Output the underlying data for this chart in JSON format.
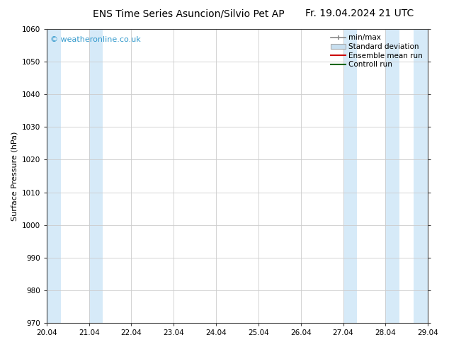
{
  "title_left": "ENS Time Series Asuncion/Silvio Pet AP",
  "title_right": "Fr. 19.04.2024 21 UTC",
  "ylabel": "Surface Pressure (hPa)",
  "ylim": [
    970,
    1060
  ],
  "yticks": [
    970,
    980,
    990,
    1000,
    1010,
    1020,
    1030,
    1040,
    1050,
    1060
  ],
  "xlim": [
    0,
    9
  ],
  "xtick_labels": [
    "20.04",
    "21.04",
    "22.04",
    "23.04",
    "24.04",
    "25.04",
    "26.04",
    "27.04",
    "28.04",
    "29.04"
  ],
  "watermark": "© weatheronline.co.uk",
  "watermark_color": "#3399cc",
  "bg_color": "#ffffff",
  "plot_bg_color": "#ffffff",
  "shaded_bands": [
    {
      "x_start": 0.0,
      "x_end": 0.33,
      "color": "#d6eaf8"
    },
    {
      "x_start": 1.0,
      "x_end": 1.33,
      "color": "#d6eaf8"
    },
    {
      "x_start": 7.0,
      "x_end": 7.33,
      "color": "#d6eaf8"
    },
    {
      "x_start": 8.0,
      "x_end": 8.33,
      "color": "#d6eaf8"
    },
    {
      "x_start": 8.67,
      "x_end": 9.0,
      "color": "#d6eaf8"
    }
  ],
  "legend_entries": [
    {
      "label": "min/max",
      "color": "#888888",
      "type": "errorbar"
    },
    {
      "label": "Standard deviation",
      "color": "#c8dff0",
      "type": "box"
    },
    {
      "label": "Ensemble mean run",
      "color": "#cc0000",
      "type": "line"
    },
    {
      "label": "Controll run",
      "color": "#006600",
      "type": "line"
    }
  ],
  "title_fontsize": 10,
  "axis_label_fontsize": 8,
  "tick_fontsize": 7.5,
  "legend_fontsize": 7.5
}
